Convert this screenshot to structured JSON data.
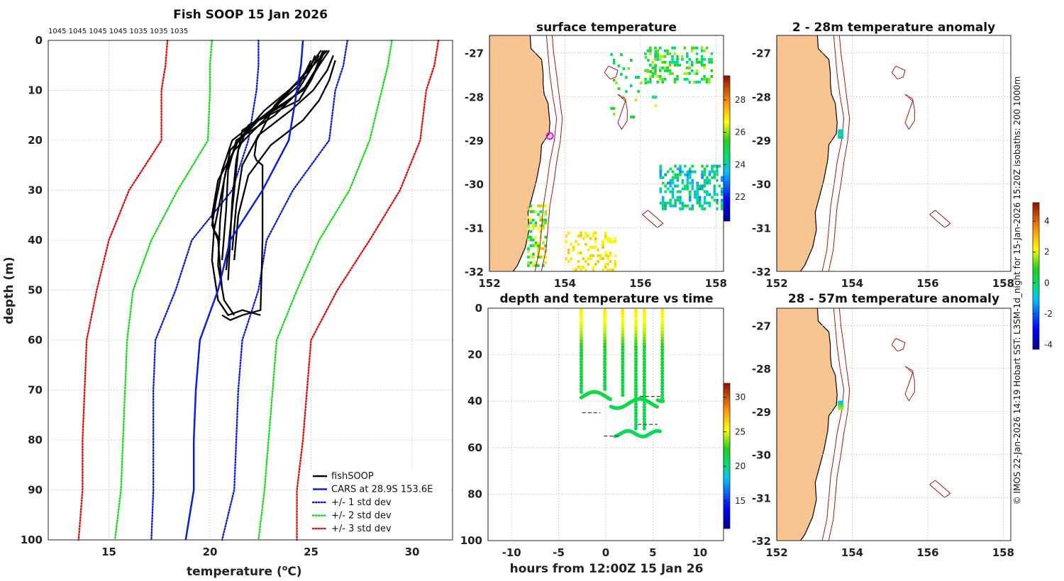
{
  "chart_data": [
    {
      "id": "profile",
      "type": "line",
      "title": "Fish SOOP 15 Jan 2026",
      "top_note": "1045 1045 1045 1045 1035 1035 1035",
      "xlabel": "temperature (",
      "xlabel_unit": "o",
      "xlabel_tail": "C)",
      "ylabel": "depth (m)",
      "xlim": [
        12,
        32
      ],
      "ylim": [
        0,
        100
      ],
      "xticks": [
        15,
        20,
        25,
        30
      ],
      "yticks": [
        0,
        10,
        20,
        30,
        40,
        50,
        60,
        70,
        80,
        90,
        100
      ],
      "cars": {
        "depth": [
          0,
          5,
          10,
          15,
          20,
          30,
          40,
          50,
          60,
          70,
          80,
          90,
          100
        ],
        "temp": [
          24.6,
          24.5,
          24.3,
          24.1,
          23.9,
          22.6,
          21.0,
          20.4,
          19.5,
          19.3,
          19.2,
          19.2,
          18.8
        ]
      },
      "std": [
        {
          "sigma": 1,
          "color": "#0a1ee0",
          "depth": [
            0,
            5,
            10,
            20,
            30,
            40,
            50,
            60,
            70,
            80,
            90,
            100
          ],
          "lower": [
            22.4,
            22.4,
            22.3,
            21.9,
            21.1,
            19.1,
            18.3,
            17.3,
            17.2,
            17.2,
            17.2,
            17.1
          ],
          "upper": [
            26.8,
            26.6,
            26.2,
            25.9,
            24.1,
            22.8,
            22.4,
            21.6,
            21.4,
            21.3,
            21.2,
            20.6
          ]
        },
        {
          "sigma": 2,
          "color": "#18dd18",
          "depth": [
            0,
            5,
            10,
            20,
            30,
            40,
            50,
            60,
            70,
            80,
            90,
            100
          ],
          "lower": [
            20.1,
            20.0,
            20.0,
            19.9,
            18.4,
            17.1,
            16.2,
            15.9,
            15.8,
            15.7,
            15.6,
            15.3
          ],
          "upper": [
            29.0,
            28.8,
            28.5,
            27.9,
            26.9,
            25.4,
            24.3,
            23.3,
            23.1,
            22.9,
            22.7,
            22.4
          ]
        },
        {
          "sigma": 3,
          "color": "#e01010",
          "depth": [
            0,
            5,
            10,
            20,
            30,
            40,
            50,
            60,
            70,
            80,
            90,
            100
          ],
          "lower": [
            17.9,
            17.8,
            17.6,
            17.6,
            16.0,
            15.0,
            14.4,
            13.9,
            13.8,
            13.7,
            13.7,
            13.5
          ],
          "upper": [
            31.3,
            31.1,
            30.7,
            30.4,
            29.4,
            27.9,
            26.3,
            25.0,
            24.8,
            24.6,
            24.3,
            24.3
          ]
        }
      ],
      "casts": [
        {
          "temp": [
            25.6,
            25.2,
            24.6,
            23.1,
            21.6,
            21.3,
            21.1,
            21.0,
            20.9
          ],
          "depth": [
            2,
            6,
            10,
            14,
            18,
            24,
            32,
            40,
            48
          ]
        },
        {
          "temp": [
            25.9,
            25.4,
            24.8,
            23.6,
            21.9,
            21.4,
            21.2,
            21.0,
            20.8
          ],
          "depth": [
            2,
            5,
            9,
            13,
            17,
            22,
            30,
            38,
            46
          ]
        },
        {
          "temp": [
            26.1,
            25.8,
            25.1,
            24.0,
            22.4,
            21.6,
            21.3,
            21.1
          ],
          "depth": [
            3,
            6,
            10,
            14,
            19,
            25,
            33,
            42
          ]
        },
        {
          "temp": [
            25.2,
            24.8,
            24.2,
            23.2,
            21.3,
            20.9,
            20.8,
            20.6
          ],
          "depth": [
            3,
            7,
            11,
            15,
            20,
            26,
            34,
            44
          ]
        },
        {
          "temp": [
            25.7,
            25.0,
            24.4,
            22.4,
            21.0,
            20.7,
            20.5,
            20.4,
            20.7,
            21.2
          ],
          "depth": [
            2,
            8,
            12,
            16,
            22,
            28,
            36,
            45,
            52,
            55
          ]
        },
        {
          "temp": [
            26.2,
            25.9,
            25.4,
            24.6,
            23.0,
            21.9,
            21.4,
            21.2
          ],
          "depth": [
            4,
            8,
            12,
            16,
            21,
            27,
            35,
            44
          ]
        },
        {
          "temp": [
            25.8,
            25.1,
            23.2,
            22.3,
            22.2,
            22.3,
            22.6,
            22.6,
            22.5,
            21.6,
            21.0,
            20.6
          ],
          "depth": [
            2,
            5,
            13,
            20,
            23,
            24,
            25,
            40,
            54,
            55,
            56,
            55
          ]
        },
        {
          "temp": [
            25.4,
            24.8,
            22.7,
            21.4,
            20.8,
            20.5,
            20.2,
            20.1,
            20.4,
            20.9,
            21.6,
            22.5
          ],
          "depth": [
            3,
            7,
            14,
            20,
            26,
            32,
            38,
            44,
            52,
            55,
            54,
            55
          ]
        },
        {
          "temp": [
            25.0,
            24.4,
            23.0,
            21.1,
            20.6,
            20.3,
            20.1,
            20.4,
            20.6
          ],
          "depth": [
            4,
            9,
            14,
            20,
            26,
            32,
            37,
            40,
            50
          ]
        },
        {
          "temp": [
            25.5,
            24.6,
            22.9,
            21.2,
            20.4,
            20.1,
            20.2,
            20.5
          ],
          "depth": [
            2,
            7,
            15,
            22,
            28,
            35,
            38,
            40
          ]
        }
      ],
      "legend": [
        {
          "label": "fishSOOP",
          "color": "#000000",
          "style": "solid"
        },
        {
          "label": "CARS at 28.9S 153.6E",
          "color": "#0a1ee0",
          "style": "solid"
        },
        {
          "label": "+/- 1 std dev",
          "color": "#0a1ee0",
          "style": "dotted"
        },
        {
          "label": "+/- 2 std dev",
          "color": "#18dd18",
          "style": "dotted"
        },
        {
          "label": "+/- 3 std dev",
          "color": "#e01010",
          "style": "dotted"
        }
      ],
      "legend_position": "bottom-right"
    },
    {
      "id": "sst_map",
      "type": "heatmap",
      "title": "surface temperature",
      "xlim": [
        152,
        158.2
      ],
      "ylim": [
        -32,
        -26.6
      ],
      "xticks": [
        152,
        154,
        156,
        158
      ],
      "yticks": [
        -27,
        -28,
        -29,
        -30,
        -31,
        -32
      ],
      "colorbar": {
        "min": 20.5,
        "max": 29.5,
        "ticks": [
          22,
          24,
          26,
          28
        ]
      },
      "marker": {
        "lon": 153.6,
        "lat": -28.9
      }
    },
    {
      "id": "time_depth",
      "type": "scatter",
      "title": "depth and temperature vs time",
      "xlabel": "hours from 12:00Z 15 Jan 26",
      "xlim": [
        -12.5,
        12.5
      ],
      "ylim": [
        0,
        100
      ],
      "xticks": [
        -10,
        -5,
        0,
        5,
        10
      ],
      "yticks": [
        0,
        20,
        40,
        60,
        80,
        100
      ],
      "colorbar": {
        "min": 11,
        "max": 32,
        "ticks": [
          15,
          20,
          25,
          30
        ]
      }
    },
    {
      "id": "anom_shallow",
      "type": "heatmap",
      "title": "2 - 28m temperature anomaly",
      "xlim": [
        152,
        158.2
      ],
      "ylim": [
        -32,
        -26.6
      ],
      "xticks": [
        152,
        154,
        156,
        158
      ],
      "yticks": [
        -27,
        -28,
        -29,
        -30,
        -31,
        -32
      ]
    },
    {
      "id": "anom_deep",
      "type": "heatmap",
      "title": "28 - 57m temperature anomaly",
      "xlim": [
        152,
        158.2
      ],
      "ylim": [
        -32,
        -26.6
      ],
      "xticks": [
        152,
        154,
        156,
        158
      ],
      "yticks": [
        -27,
        -28,
        -29,
        -30,
        -31,
        -32
      ],
      "colorbar": {
        "min": -4.3,
        "max": 5.2,
        "ticks": [
          4,
          2,
          0,
          -2,
          -4
        ]
      }
    }
  ],
  "footer_note": "© IMOS 22-Jan-2026 14:19 Hobart SST: L3SM-1d_night for 15-Jan-2026 15:20Z isobaths: 200  1000m",
  "colors": {
    "land": "#f8c590",
    "isobath": "#a01818",
    "coast": "#000000"
  }
}
